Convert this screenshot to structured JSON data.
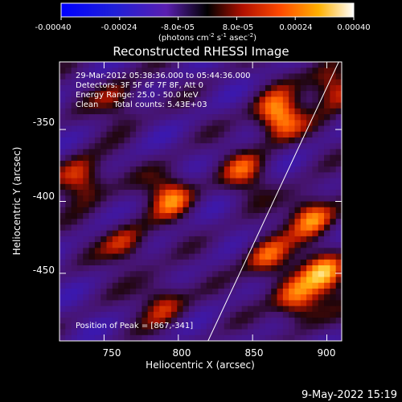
{
  "chart_data": {
    "type": "heatmap",
    "title": "Reconstructed RHESSI Image",
    "xlabel": "Heliocentric X (arcsec)",
    "ylabel": "Heliocentric Y (arcsec)",
    "xlim": [
      720,
      910
    ],
    "ylim": [
      -497,
      -303
    ],
    "x_ticks": [
      "750",
      "800",
      "850",
      "900"
    ],
    "y_ticks": [
      "-350",
      "-400",
      "-450"
    ],
    "colorbar": {
      "range": [
        -0.0004,
        0.0004
      ],
      "tick_labels": [
        "-0.00040",
        "-0.00024",
        "-8.0e-05",
        "8.0e-05",
        "0.00024",
        "0.00040"
      ],
      "units_pre": "(photons cm",
      "units_mid1": " s",
      "units_mid2": " asec",
      "units_post": ")",
      "units_sup": "-2",
      "units_sup2": "-1",
      "units_sup3": "-2"
    },
    "annotations": [
      "29-Mar-2012 05:38:36.000 to 05:44:36.000",
      "Detectors: 3F 5F 6F 7F 8F, Att 0",
      "Energy Range: 25.0 - 50.0 keV",
      "Clean      Total counts: 5.43E+03"
    ],
    "peak_text": "Position of Peak = [867,-341]",
    "peak": [
      867,
      -341
    ],
    "limb_arc_endpoints": [
      [
        820,
        -497
      ],
      [
        908,
        -303
      ]
    ]
  },
  "footer": {
    "date": "9-May-2022 15:19"
  },
  "colors": {
    "background": "#000000",
    "text": "#ffffff",
    "limb": "#ffffff"
  }
}
